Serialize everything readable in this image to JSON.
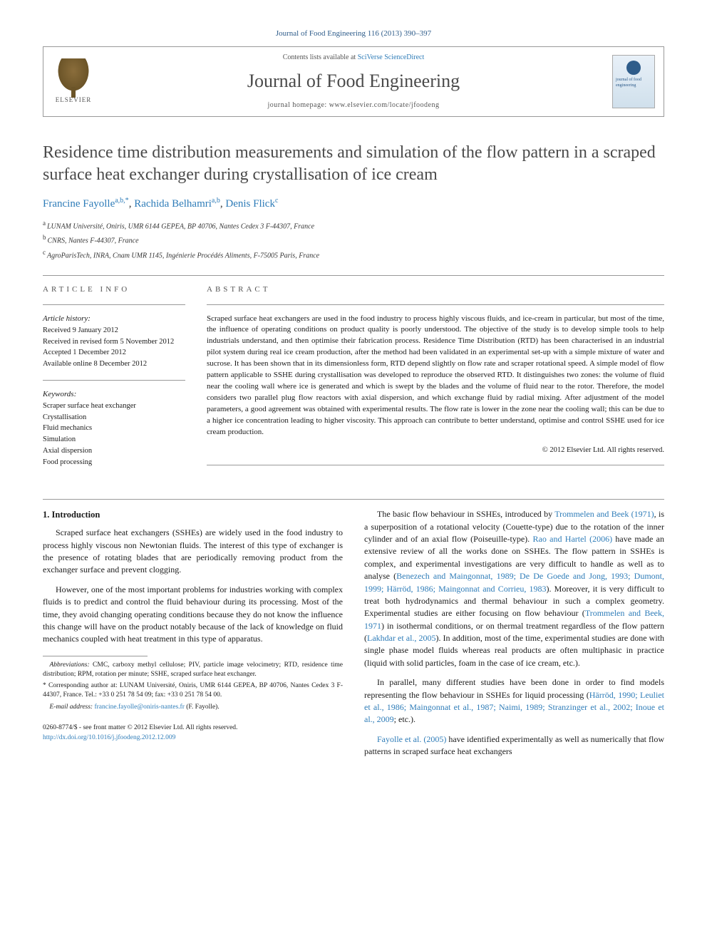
{
  "citation": "Journal of Food Engineering 116 (2013) 390–397",
  "header": {
    "elsevier": "ELSEVIER",
    "contents_prefix": "Contents lists available at ",
    "contents_link": "SciVerse ScienceDirect",
    "journal_name": "Journal of Food Engineering",
    "homepage_prefix": "journal homepage: ",
    "homepage_url": "www.elsevier.com/locate/jfoodeng",
    "cover_text": "journal of food engineering"
  },
  "title": "Residence time distribution measurements and simulation of the flow pattern in a scraped surface heat exchanger during crystallisation of ice cream",
  "authors": [
    {
      "name": "Francine Fayolle",
      "sup": "a,b,*"
    },
    {
      "name": "Rachida Belhamri",
      "sup": "a,b"
    },
    {
      "name": "Denis Flick",
      "sup": "c"
    }
  ],
  "affiliations": [
    {
      "sup": "a",
      "text": "LUNAM Université, Oniris, UMR 6144 GEPEA, BP 40706, Nantes Cedex 3 F-44307, France"
    },
    {
      "sup": "b",
      "text": "CNRS, Nantes F-44307, France"
    },
    {
      "sup": "c",
      "text": "AgroParisTech, INRA, Cnam UMR 1145, Ingénierie Procédés Aliments, F-75005 Paris, France"
    }
  ],
  "article_info": {
    "heading": "ARTICLE INFO",
    "history_label": "Article history:",
    "history": [
      "Received 9 January 2012",
      "Received in revised form 5 November 2012",
      "Accepted 1 December 2012",
      "Available online 8 December 2012"
    ],
    "keywords_label": "Keywords:",
    "keywords": [
      "Scraper surface heat exchanger",
      "Crystallisation",
      "Fluid mechanics",
      "Simulation",
      "Axial dispersion",
      "Food processing"
    ]
  },
  "abstract": {
    "heading": "ABSTRACT",
    "text": "Scraped surface heat exchangers are used in the food industry to process highly viscous fluids, and ice-cream in particular, but most of the time, the influence of operating conditions on product quality is poorly understood. The objective of the study is to develop simple tools to help industrials understand, and then optimise their fabrication process. Residence Time Distribution (RTD) has been characterised in an industrial pilot system during real ice cream production, after the method had been validated in an experimental set-up with a simple mixture of water and sucrose. It has been shown that in its dimensionless form, RTD depend slightly on flow rate and scraper rotational speed. A simple model of flow pattern applicable to SSHE during crystallisation was developed to reproduce the observed RTD. It distinguishes two zones: the volume of fluid near the cooling wall where ice is generated and which is swept by the blades and the volume of fluid near to the rotor. Therefore, the model considers two parallel plug flow reactors with axial dispersion, and which exchange fluid by radial mixing. After adjustment of the model parameters, a good agreement was obtained with experimental results. The flow rate is lower in the zone near the cooling wall; this can be due to a higher ice concentration leading to higher viscosity. This approach can contribute to better understand, optimise and control SSHE used for ice cream production.",
    "copyright": "© 2012 Elsevier Ltd. All rights reserved."
  },
  "body": {
    "intro_heading": "1. Introduction",
    "left_paras": [
      "Scraped surface heat exchangers (SSHEs) are widely used in the food industry to process highly viscous non Newtonian fluids. The interest of this type of exchanger is the presence of rotating blades that are periodically removing product from the exchanger surface and prevent clogging.",
      "However, one of the most important problems for industries working with complex fluids is to predict and control the fluid behaviour during its processing. Most of the time, they avoid changing operating conditions because they do not know the influence this change will have on the product notably because of the lack of knowledge on fluid mechanics coupled with heat treatment in this type of apparatus."
    ],
    "right_paras": [
      {
        "pre": "The basic flow behaviour in SSHEs, introduced by ",
        "c1": "Trommelen and Beek (1971)",
        "mid1": ", is a superposition of a rotational velocity (Couette-type) due to the rotation of the inner cylinder and of an axial flow (Poiseuille-type). ",
        "c2": "Rao and Hartel (2006)",
        "mid2": " have made an extensive review of all the works done on SSHEs. The flow pattern in SSHEs is complex, and experimental investigations are very difficult to handle as well as to analyse (",
        "c3": "Benezech and Maingonnat, 1989; De De Goede and Jong, 1993; Dumont, 1999; Härröd, 1986; Maingonnat and Corrieu, 1983",
        "mid3": "). Moreover, it is very difficult to treat both hydrodynamics and thermal behaviour in such a complex geometry. Experimental studies are either focusing on flow behaviour (",
        "c4": "Trommelen and Beek, 1971",
        "mid4": ") in isothermal conditions, or on thermal treatment regardless of the flow pattern (",
        "c5": "Lakhdar et al., 2005",
        "post": "). In addition, most of the time, experimental studies are done with single phase model fluids whereas real products are often multiphasic in practice (liquid with solid particles, foam in the case of ice cream, etc.)."
      },
      {
        "pre": "In parallel, many different studies have been done in order to find models representing the flow behaviour in SSHEs for liquid processing (",
        "c1": "Härröd, 1990; Leuliet et al., 1986; Maingonnat et al., 1987; Naimi, 1989; Stranzinger et al., 2002; Inoue et al., 2009",
        "post": "; etc.)."
      },
      {
        "c1": "Fayolle et al. (2005)",
        "post": " have identified experimentally as well as numerically that flow patterns in scraped surface heat exchangers"
      }
    ]
  },
  "footnotes": {
    "abbrev_label": "Abbreviations:",
    "abbrev": " CMC, carboxy methyl cellulose; PIV, particle image velocimetry; RTD, residence time distribution; RPM, rotation per minute; SSHE, scraped surface heat exchanger.",
    "corresponding": "* Corresponding author at: LUNAM Université, Oniris, UMR 6144 GEPEA, BP 40706, Nantes Cedex 3 F-44307, France. Tel.: +33 0 251 78 54 09; fax: +33 0 251 78 54 00.",
    "email_label": "E-mail address:",
    "email": "francine.fayolle@oniris-nantes.fr",
    "email_name": "(F. Fayolle)."
  },
  "footer": {
    "line1": "0260-8774/$ - see front matter © 2012 Elsevier Ltd. All rights reserved.",
    "doi_url": "http://dx.doi.org/10.1016/j.jfoodeng.2012.12.009"
  },
  "colors": {
    "link": "#2e7cb8",
    "text": "#1a1a1a",
    "heading": "#4a4a4a"
  }
}
